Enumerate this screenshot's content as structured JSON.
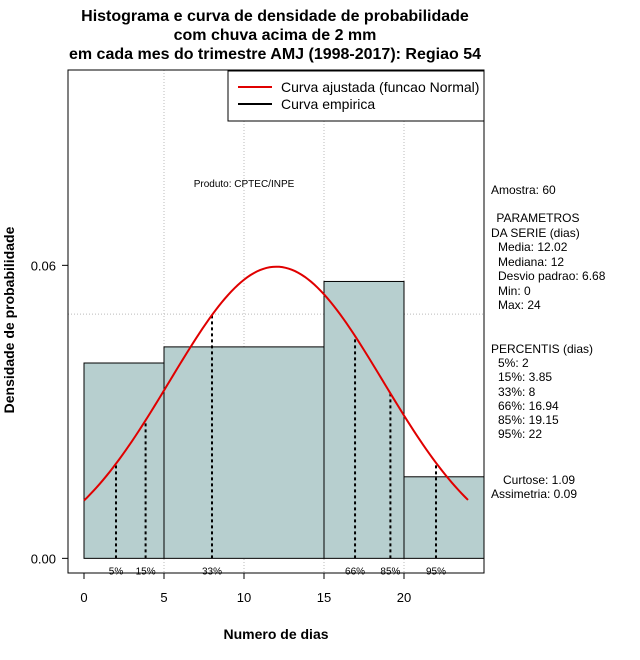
{
  "chart_data": {
    "type": "histogram",
    "title_lines": [
      "Histograma e curva de densidade de probabilidade",
      "com chuva acima de 2 mm",
      "em cada mes do trimestre AMJ (1998-2017): Regiao 54"
    ],
    "xlabel": "Numero de dias",
    "ylabel": "Densidade de probabilidade",
    "xlim": [
      -1,
      25
    ],
    "ylim": [
      -0.003,
      0.1
    ],
    "x_ticks": [
      0,
      5,
      10,
      15,
      20
    ],
    "y_ticks": [
      0.0,
      0.06
    ],
    "y_tick_labels": [
      "0.00",
      "0.06"
    ],
    "grid": [
      {
        "axis": "x",
        "value": 5
      },
      {
        "axis": "x",
        "value": 10
      },
      {
        "axis": "x",
        "value": 15
      },
      {
        "axis": "x",
        "value": 20
      },
      {
        "axis": "y",
        "value": 0.05
      },
      {
        "axis": "y",
        "value": 0.1
      }
    ],
    "bins": [
      {
        "x0": 0,
        "x1": 5,
        "density": 0.04
      },
      {
        "x0": 5,
        "x1": 15,
        "density": 0.0433
      },
      {
        "x0": 15,
        "x1": 20,
        "density": 0.0567
      },
      {
        "x0": 20,
        "x1": 25,
        "density": 0.0167
      }
    ],
    "normal_curve": {
      "mean": 12.02,
      "sd": 6.68,
      "x_from": 0,
      "x_to": 24
    },
    "percentiles": [
      {
        "label": "5%",
        "x": 2
      },
      {
        "label": "15%",
        "x": 3.85
      },
      {
        "label": "33%",
        "x": 8
      },
      {
        "label": "66%",
        "x": 16.94
      },
      {
        "label": "85%",
        "x": 19.15
      },
      {
        "label": "95%",
        "x": 22
      }
    ],
    "legend": [
      {
        "label": "Curva ajustada (funcao Normal)",
        "color": "#e00000"
      },
      {
        "label": "Curva empirica",
        "color": "#000000"
      }
    ],
    "annotation": "Produto: CPTEC/INPE",
    "colors": {
      "bar_fill": "#b7cfcf",
      "curve": "#e00000",
      "grid": "#bbbbbb"
    }
  },
  "stats": {
    "amostra": "Amostra: 60",
    "param_header1": " PARAMETROS",
    "param_header2": "DA SERIE (dias)",
    "media": "Media: 12.02",
    "mediana": "Mediana: 12",
    "desvio": "Desvio padrao: 6.68",
    "min": "Min: 0",
    "max": "Max: 24",
    "perc_header": "PERCENTIS (dias)",
    "p5": "5%: 2",
    "p15": "15%: 3.85",
    "p33": "33%: 8",
    "p66": "66%: 16.94",
    "p85": "85%: 19.15",
    "p95": "95%: 22",
    "curtose": "Curtose: 1.09",
    "assimetria": "Assimetria: 0.09"
  }
}
